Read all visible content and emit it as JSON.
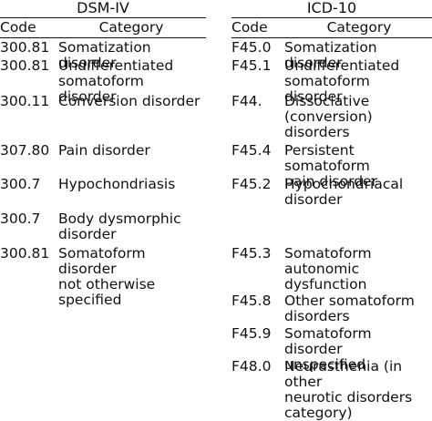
{
  "dsm": {
    "title": "DSM-IV",
    "code_header": "Code",
    "category_header": "Category",
    "rows": [
      {
        "code": "300.81",
        "category": "Somatization disorder"
      },
      {
        "code": "300.81",
        "category": "Undifferentiated\nsomatoform disorder"
      },
      {
        "code": "300.11",
        "category": "Conversion disorder"
      },
      {
        "code": "307.80",
        "category": "Pain disorder"
      },
      {
        "code": "300.7",
        "category": "Hypochondriasis"
      },
      {
        "code": "300.7",
        "category": "Body dysmorphic\ndisorder"
      },
      {
        "code": "300.81",
        "category": "Somatoform disorder\nnot otherwise\nspecified"
      }
    ]
  },
  "icd": {
    "title": "ICD-10",
    "code_header": "Code",
    "category_header": "Category",
    "rows": [
      {
        "code": "F45.0",
        "category": "Somatization disorder"
      },
      {
        "code": "F45.1",
        "category": "Undifferentiated\nsomatoform disorder"
      },
      {
        "code": "F44.",
        "category": "Dissociative\n(conversion)\ndisorders"
      },
      {
        "code": "F45.4",
        "category": "Persistent somatoform\npain disorder"
      },
      {
        "code": "F45.2",
        "category": "Hypochondriacal\ndisorder"
      },
      {
        "code": "F45.3",
        "category": "Somatoform\nautonomic\ndysfunction"
      },
      {
        "code": "F45.8",
        "category": "Other somatoform\ndisorders"
      },
      {
        "code": "F45.9",
        "category": "Somatoform disorder\nunspecified"
      },
      {
        "code": "F48.0",
        "category": "Neurasthenia (in other\nneurotic disorders\ncategory)"
      }
    ]
  }
}
